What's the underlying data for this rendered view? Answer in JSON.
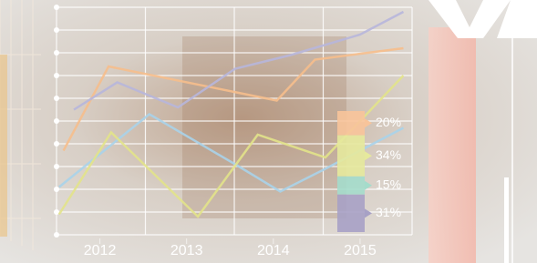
{
  "chart_data": [
    {
      "type": "line",
      "xlim": [
        2011.5,
        2015.6
      ],
      "xticks": [
        2012,
        2013,
        2014,
        2015
      ],
      "ylim": [
        0,
        10
      ],
      "yticks": [
        0,
        1,
        2,
        3,
        4,
        5,
        6,
        7,
        8,
        9,
        10
      ],
      "grid": true,
      "series": [
        {
          "color": "#f6be8c",
          "x": [
            2011.58,
            2012.1,
            2014.04,
            2014.48,
            2015.5
          ],
          "values": [
            3.7,
            7.4,
            5.9,
            7.7,
            8.2
          ]
        },
        {
          "color": "#b7b6dc",
          "x": [
            2011.7,
            2012.2,
            2012.9,
            2013.56,
            2014.2,
            2015.0,
            2015.5
          ],
          "values": [
            5.5,
            6.7,
            5.6,
            7.3,
            7.9,
            8.8,
            9.8
          ]
        },
        {
          "color": "#a8d3ea",
          "x": [
            2011.53,
            2012.57,
            2013.56,
            2014.08,
            2014.6,
            2015.5
          ],
          "values": [
            2.1,
            5.3,
            3.1,
            1.9,
            2.9,
            4.7
          ]
        },
        {
          "color": "#e2e38a",
          "x": [
            2011.53,
            2012.13,
            2013.13,
            2013.82,
            2014.6,
            2015.5
          ],
          "values": [
            0.9,
            4.5,
            0.8,
            4.4,
            3.4,
            7.0
          ]
        }
      ]
    },
    {
      "type": "stack",
      "values": [
        20,
        34,
        15,
        31
      ],
      "value_labels": [
        "20%",
        "34%",
        "15%",
        "31%"
      ],
      "colors": [
        "#f8c49a",
        "#e6e99c",
        "#a4dccb",
        "#a7a1c5"
      ],
      "ylim": [
        0,
        100
      ]
    }
  ]
}
